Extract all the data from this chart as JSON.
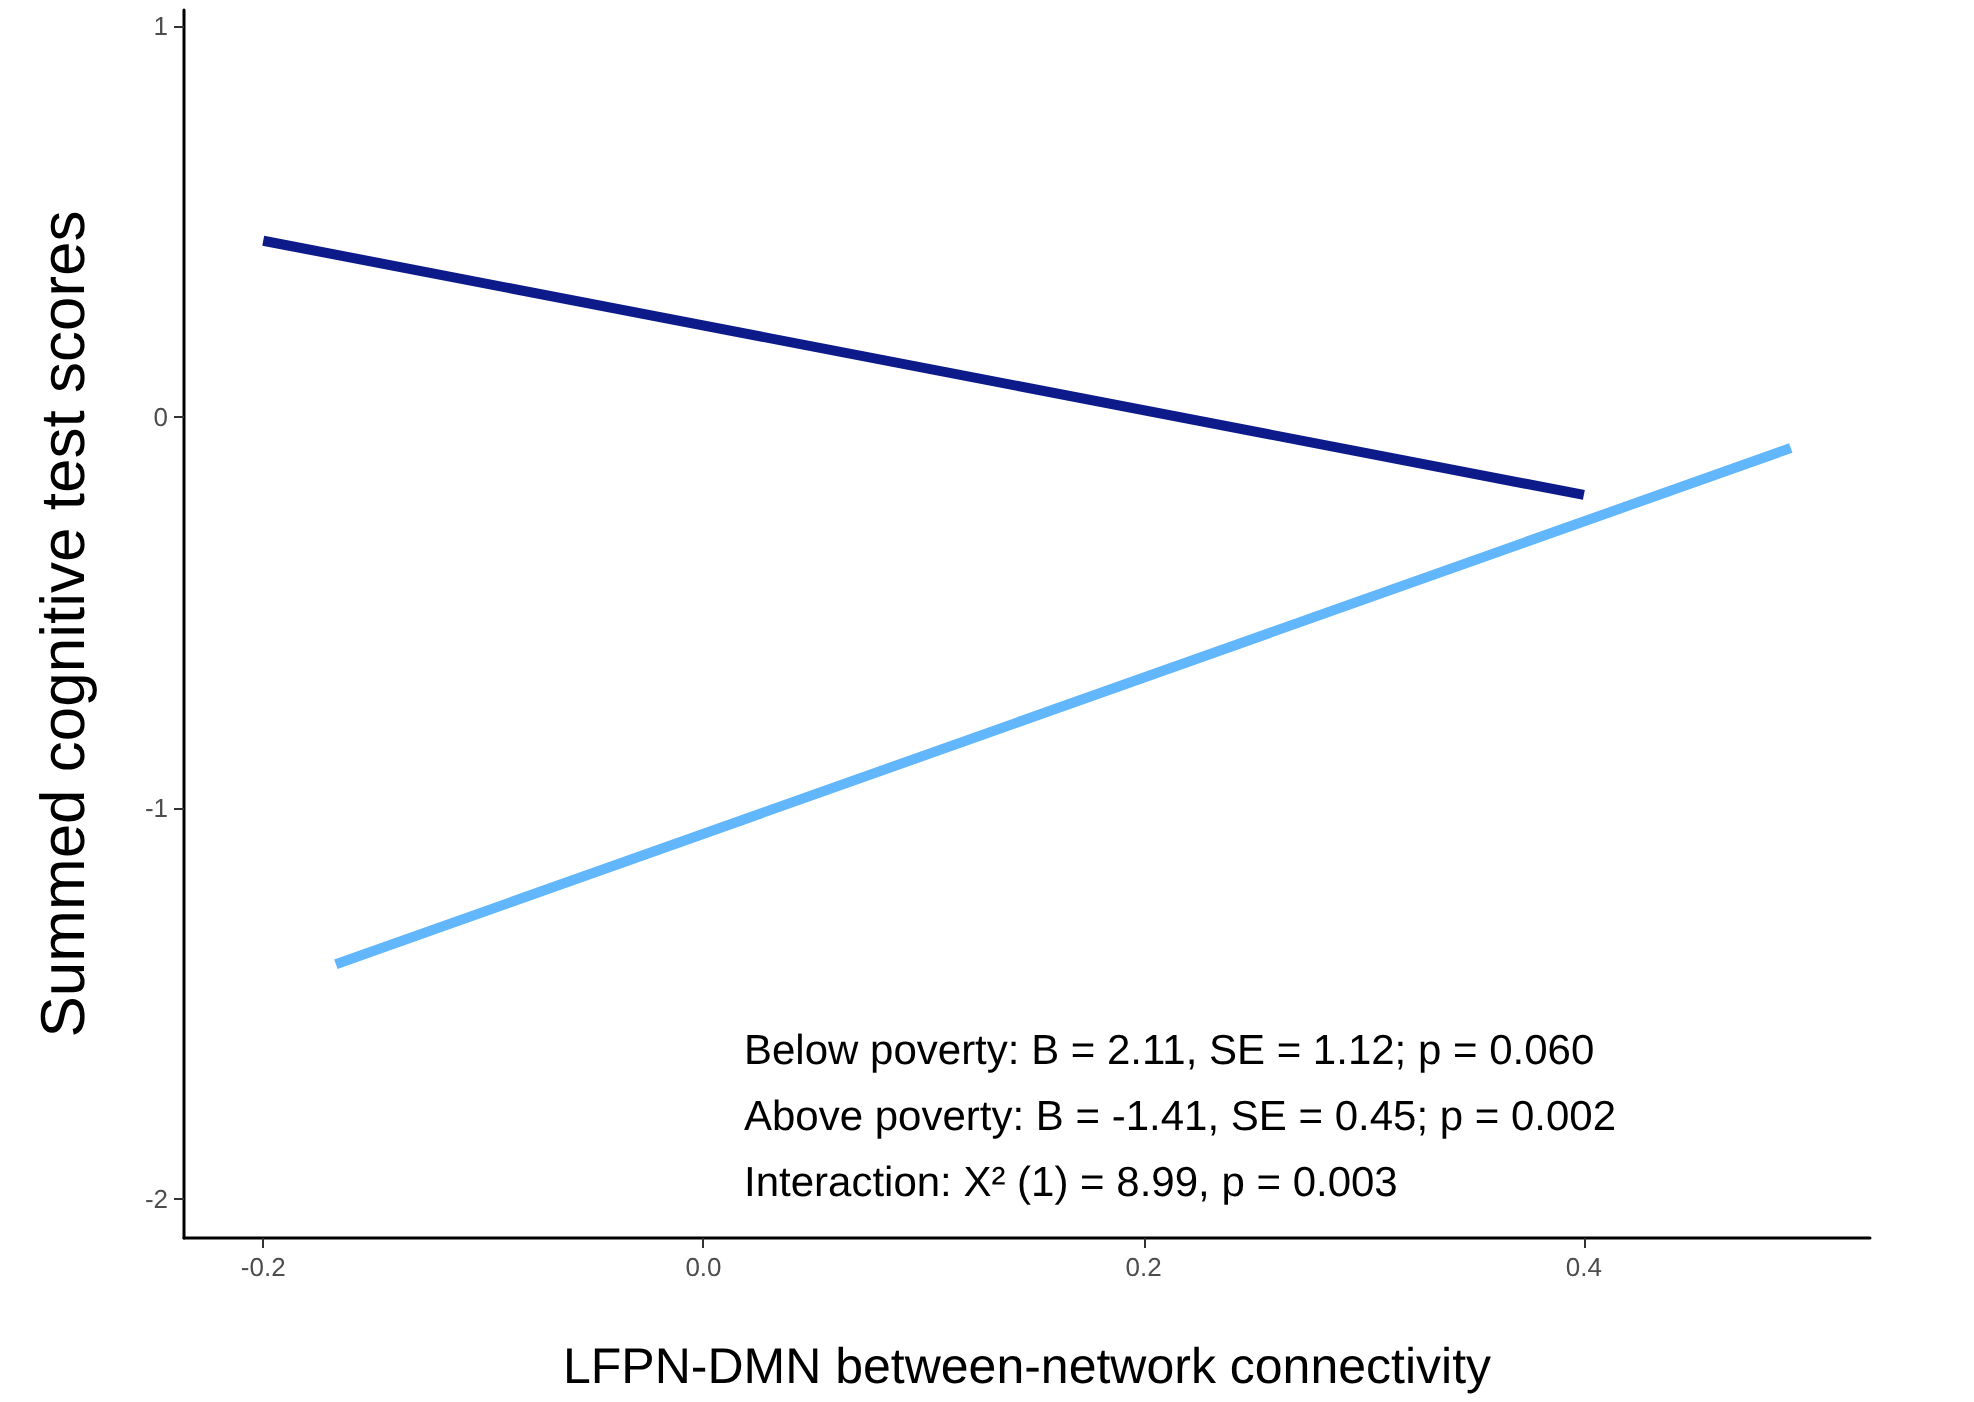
{
  "chart_data": {
    "type": "line",
    "xlabel": "LFPN-DMN between-network connectivity",
    "ylabel": "Summed cognitive test scores",
    "series": [
      {
        "color": "#0c1a8a",
        "x": [
          -0.2,
          0.4
        ],
        "values": [
          0.45,
          -0.2
        ]
      },
      {
        "color": "#62b6fb",
        "x": [
          -0.167,
          0.494
        ],
        "values": [
          -1.4,
          -0.08
        ]
      }
    ],
    "xlim": [
      -0.236,
      0.53
    ],
    "xticks": [
      {
        "value": -0.2,
        "label": "-0.2"
      },
      {
        "value": 0,
        "label": "0.0"
      },
      {
        "value": 0.2,
        "label": "0.2"
      },
      {
        "value": 0.4,
        "label": "0.4"
      }
    ],
    "ylim": [
      -2.1,
      1.04
    ],
    "yticks": [
      -2,
      -1,
      0,
      1
    ],
    "grid": false,
    "marker": "none",
    "line_style": "solid",
    "annotations": [
      "Below poverty: B = 2.11, SE = 1.12; p = 0.060",
      "Above poverty: B = -1.41, SE = 0.45; p = 0.002",
      "Interaction: X² (1) = 8.99, p = 0.003"
    ]
  }
}
